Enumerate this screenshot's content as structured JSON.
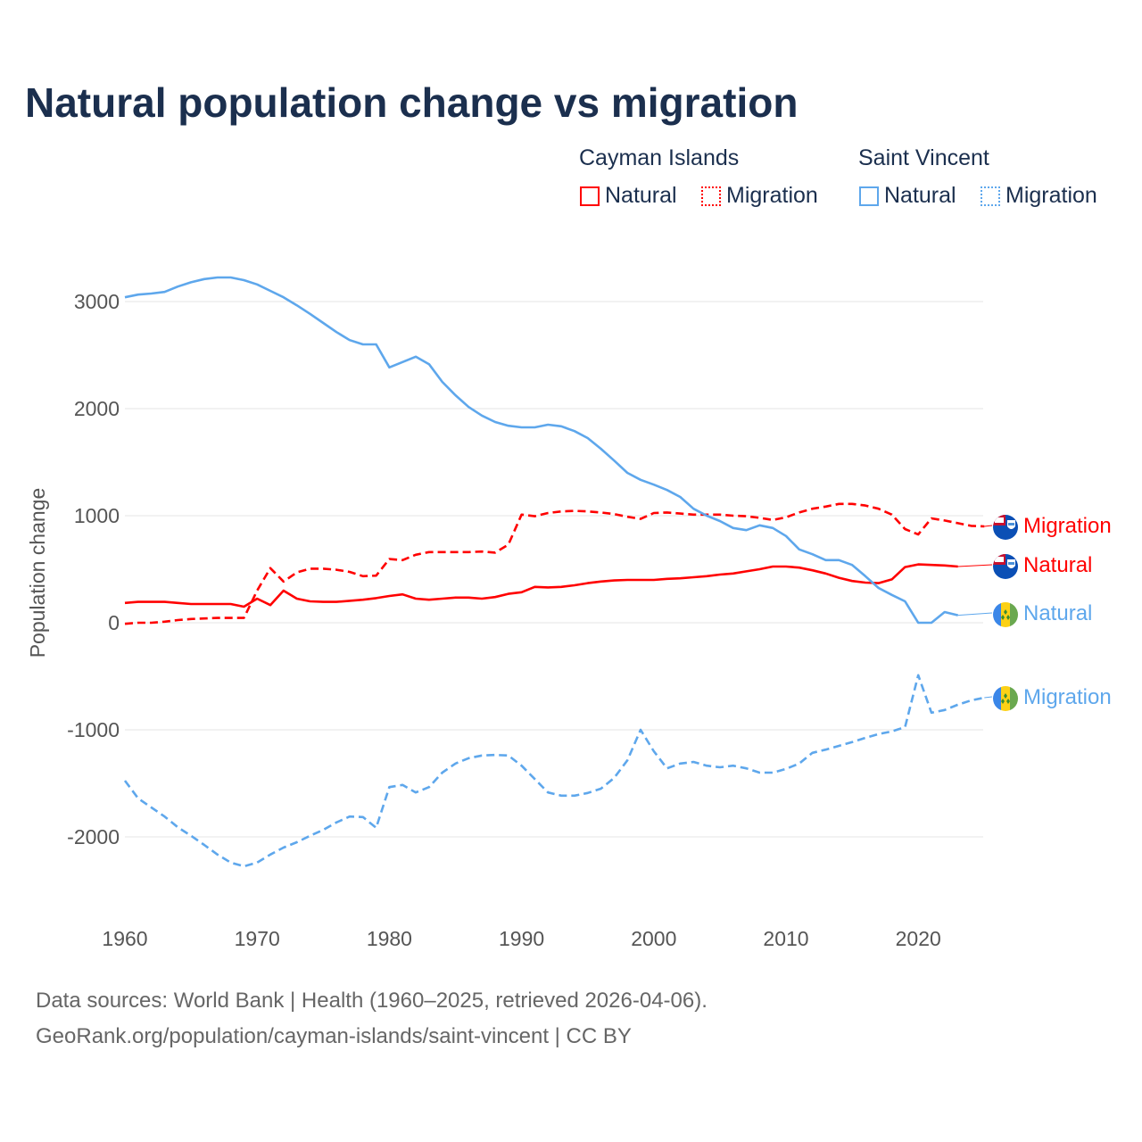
{
  "chart_data": {
    "type": "line",
    "title": "Natural population change vs migration",
    "xlabel": "",
    "ylabel": "Population change",
    "xlim": [
      1960,
      2025
    ],
    "ylim": [
      -2600,
      3300
    ],
    "grid": true,
    "x_ticks": [
      1960,
      1970,
      1980,
      1990,
      2000,
      2010,
      2020
    ],
    "y_ticks": [
      3000,
      2000,
      1000,
      0,
      -1000,
      -2000
    ],
    "y_tick_labels": [
      "3000",
      "2000",
      "1000",
      "0",
      "-1000",
      "-2000"
    ],
    "legend_placement": "top-right",
    "legend_groups": [
      "Cayman Islands",
      "Saint Vincent"
    ],
    "colors": {
      "cayman": "#ff0000",
      "saint_vincent": "#5ea7ec"
    },
    "series": [
      {
        "name": "Cayman Islands Natural",
        "group": "Cayman Islands",
        "label": "Natural",
        "style": "solid",
        "color": "#ff0000",
        "start": 1960,
        "values": [
          185,
          195,
          195,
          195,
          185,
          175,
          175,
          175,
          175,
          150,
          225,
          165,
          300,
          225,
          200,
          195,
          195,
          205,
          215,
          230,
          250,
          265,
          225,
          215,
          225,
          235,
          235,
          225,
          240,
          270,
          285,
          335,
          330,
          335,
          350,
          370,
          385,
          395,
          400,
          400,
          400,
          410,
          415,
          425,
          435,
          450,
          460,
          480,
          500,
          525,
          525,
          515,
          490,
          460,
          420,
          390,
          375,
          370,
          405,
          520,
          545,
          540,
          535,
          525
        ]
      },
      {
        "name": "Cayman Islands Migration",
        "group": "Cayman Islands",
        "label": "Migration",
        "style": "dashed",
        "color": "#ff0000",
        "start": 1960,
        "values": [
          -10,
          0,
          0,
          10,
          25,
          35,
          40,
          45,
          45,
          45,
          300,
          510,
          385,
          470,
          505,
          505,
          495,
          475,
          435,
          440,
          595,
          585,
          635,
          660,
          660,
          660,
          660,
          665,
          655,
          730,
          1010,
          995,
          1025,
          1040,
          1045,
          1040,
          1030,
          1015,
          990,
          970,
          1025,
          1030,
          1020,
          1010,
          1010,
          1010,
          1000,
          995,
          980,
          960,
          985,
          1030,
          1065,
          1085,
          1110,
          1110,
          1095,
          1065,
          1010,
          875,
          825,
          975,
          955,
          930,
          905,
          900
        ]
      },
      {
        "name": "Saint Vincent Natural",
        "group": "Saint Vincent",
        "label": "Natural",
        "style": "solid",
        "color": "#5ea7ec",
        "start": 1960,
        "values": [
          3040,
          3065,
          3075,
          3090,
          3140,
          3180,
          3210,
          3225,
          3225,
          3200,
          3160,
          3100,
          3040,
          2965,
          2885,
          2800,
          2715,
          2640,
          2600,
          2600,
          2385,
          2435,
          2485,
          2415,
          2250,
          2125,
          2015,
          1935,
          1875,
          1840,
          1825,
          1825,
          1850,
          1835,
          1790,
          1725,
          1625,
          1515,
          1400,
          1335,
          1290,
          1240,
          1175,
          1065,
          1000,
          950,
          885,
          865,
          910,
          885,
          810,
          685,
          640,
          585,
          585,
          540,
          435,
          325,
          260,
          200,
          0,
          0,
          100,
          70
        ]
      },
      {
        "name": "Saint Vincent Migration",
        "group": "Saint Vincent",
        "label": "Migration",
        "style": "dashed",
        "color": "#5ea7ec",
        "start": 1960,
        "values": [
          -1475,
          -1640,
          -1725,
          -1810,
          -1910,
          -1990,
          -2075,
          -2165,
          -2240,
          -2275,
          -2240,
          -2165,
          -2100,
          -2050,
          -1990,
          -1935,
          -1865,
          -1810,
          -1815,
          -1915,
          -1535,
          -1515,
          -1585,
          -1535,
          -1400,
          -1315,
          -1265,
          -1240,
          -1235,
          -1240,
          -1335,
          -1460,
          -1585,
          -1615,
          -1615,
          -1590,
          -1550,
          -1450,
          -1285,
          -1000,
          -1200,
          -1360,
          -1315,
          -1300,
          -1335,
          -1350,
          -1335,
          -1360,
          -1400,
          -1400,
          -1365,
          -1315,
          -1215,
          -1185,
          -1150,
          -1115,
          -1075,
          -1040,
          -1015,
          -975,
          -490,
          -840,
          -815,
          -765,
          -725,
          -700
        ]
      }
    ]
  },
  "legend": {
    "cayman_title": "Cayman Islands",
    "sv_title": "Saint Vincent",
    "natural": "Natural",
    "migration": "Migration"
  },
  "footer": {
    "line1": "Data sources: World Bank | Health (1960–2025, retrieved 2026-04-06).",
    "line2": "GeoRank.org/population/cayman-islands/saint-vincent | CC BY"
  }
}
